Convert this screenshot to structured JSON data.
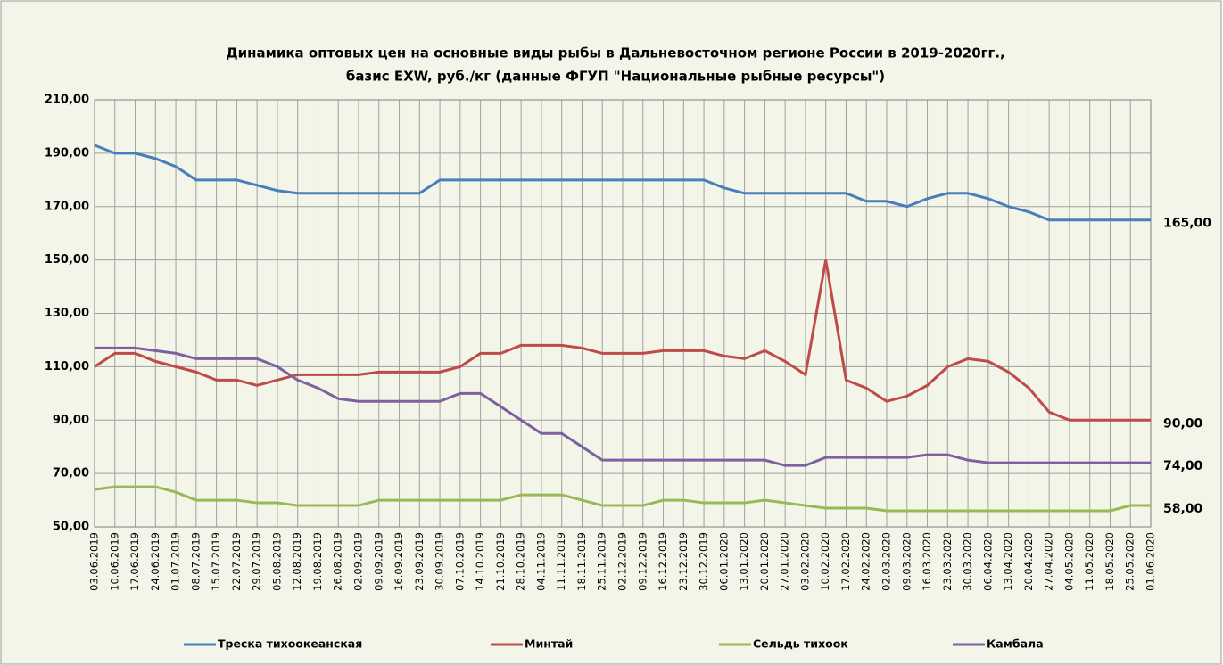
{
  "chart_data": {
    "type": "line",
    "title": [
      "Динамика оптовых цен на основные виды рыбы в Дальневосточном регионе России в 2019-2020гг.,",
      "базис EXW, руб./кг (данные ФГУП \"Национальные рыбные ресурсы\")"
    ],
    "categories": [
      "03.06.2019",
      "10.06.2019",
      "17.06.2019",
      "24.06.2019",
      "01.07.2019",
      "08.07.2019",
      "15.07.2019",
      "22.07.2019",
      "29.07.2019",
      "05.08.2019",
      "12.08.2019",
      "19.08.2019",
      "26.08.2019",
      "02.09.2019",
      "09.09.2019",
      "16.09.2019",
      "23.09.2019",
      "30.09.2019",
      "07.10.2019",
      "14.10.2019",
      "21.10.2019",
      "28.10.2019",
      "04.11.2019",
      "11.11.2019",
      "18.11.2019",
      "25.11.2019",
      "02.12.2019",
      "09.12.2019",
      "16.12.2019",
      "23.12.2019",
      "30.12.2019",
      "06.01.2020",
      "13.01.2020",
      "20.01.2020",
      "27.01.2020",
      "03.02.2020",
      "10.02.2020",
      "17.02.2020",
      "24.02.2020",
      "02.03.2020",
      "09.03.2020",
      "16.03.2020",
      "23.03.2020",
      "30.03.2020",
      "06.04.2020",
      "13.04.2020",
      "20.04.2020",
      "27.04.2020",
      "04.05.2020",
      "11.05.2020",
      "18.05.2020",
      "25.05.2020",
      "01.06.2020"
    ],
    "series": [
      {
        "name": "Треска тихоокеанская",
        "color": "#4a7ebb",
        "values": [
          193,
          190,
          190,
          188,
          185,
          180,
          180,
          180,
          178,
          176,
          175,
          175,
          175,
          175,
          175,
          175,
          175,
          180,
          180,
          180,
          180,
          180,
          180,
          180,
          180,
          180,
          180,
          180,
          180,
          180,
          180,
          177,
          175,
          175,
          175,
          175,
          175,
          175,
          172,
          172,
          170,
          173,
          175,
          175,
          173,
          170,
          168,
          165,
          165,
          165,
          165,
          165,
          165
        ],
        "value_labels": [
          null,
          null,
          null,
          null,
          null,
          null,
          null,
          null,
          null,
          null,
          null,
          null,
          null,
          null,
          null,
          null,
          null,
          null,
          null,
          null,
          null,
          null,
          null,
          null,
          null,
          null,
          null,
          null,
          null,
          null,
          null,
          null,
          null,
          null,
          null,
          null,
          null,
          null,
          null,
          null,
          null,
          null,
          null,
          null,
          null,
          null,
          null,
          null,
          null,
          null,
          null,
          null,
          "165,00"
        ]
      },
      {
        "name": "Минтай",
        "color": "#be4b48",
        "values": [
          110,
          115,
          115,
          112,
          110,
          108,
          105,
          105,
          103,
          105,
          107,
          107,
          107,
          107,
          108,
          108,
          108,
          108,
          110,
          115,
          115,
          118,
          118,
          118,
          117,
          115,
          115,
          115,
          116,
          116,
          116,
          114,
          113,
          116,
          112,
          107,
          150,
          105,
          102,
          97,
          99,
          103,
          110,
          113,
          112,
          108,
          102,
          93,
          90,
          90,
          90,
          90,
          90
        ],
        "value_labels": [
          null,
          null,
          null,
          null,
          null,
          null,
          null,
          null,
          null,
          null,
          null,
          null,
          null,
          null,
          null,
          null,
          null,
          null,
          null,
          null,
          null,
          null,
          null,
          null,
          null,
          null,
          null,
          null,
          null,
          null,
          null,
          null,
          null,
          null,
          null,
          null,
          null,
          null,
          null,
          null,
          null,
          null,
          null,
          null,
          null,
          null,
          null,
          null,
          null,
          null,
          null,
          null,
          "90,00"
        ]
      },
      {
        "name": "Сельдь тихоок",
        "color": "#98b954",
        "values": [
          64,
          65,
          65,
          65,
          63,
          60,
          60,
          60,
          59,
          59,
          58,
          58,
          58,
          58,
          60,
          60,
          60,
          60,
          60,
          60,
          60,
          62,
          62,
          62,
          60,
          58,
          58,
          58,
          60,
          60,
          59,
          59,
          59,
          60,
          59,
          58,
          57,
          57,
          57,
          56,
          56,
          56,
          56,
          56,
          56,
          56,
          56,
          56,
          56,
          56,
          56,
          58,
          58
        ],
        "value_labels": [
          null,
          null,
          null,
          null,
          null,
          null,
          null,
          null,
          null,
          null,
          null,
          null,
          null,
          null,
          null,
          null,
          null,
          null,
          null,
          null,
          null,
          null,
          null,
          null,
          null,
          null,
          null,
          null,
          null,
          null,
          null,
          null,
          null,
          null,
          null,
          null,
          null,
          null,
          null,
          null,
          null,
          null,
          null,
          null,
          null,
          null,
          null,
          null,
          null,
          null,
          null,
          null,
          "58,00"
        ]
      },
      {
        "name": "Камбала",
        "color": "#7d60a0",
        "values": [
          117,
          117,
          117,
          116,
          115,
          113,
          113,
          113,
          113,
          110,
          105,
          102,
          98,
          97,
          97,
          97,
          97,
          97,
          100,
          100,
          95,
          90,
          85,
          85,
          80,
          75,
          75,
          75,
          75,
          75,
          75,
          75,
          75,
          75,
          73,
          73,
          76,
          76,
          76,
          76,
          76,
          77,
          77,
          75,
          74,
          74,
          74,
          74,
          74,
          74,
          74,
          74,
          74
        ],
        "value_labels": [
          null,
          null,
          null,
          null,
          null,
          null,
          null,
          null,
          null,
          null,
          null,
          null,
          null,
          null,
          null,
          null,
          null,
          null,
          null,
          null,
          null,
          null,
          null,
          null,
          null,
          null,
          null,
          null,
          null,
          null,
          null,
          null,
          null,
          null,
          null,
          null,
          null,
          null,
          null,
          null,
          null,
          null,
          null,
          null,
          null,
          null,
          null,
          null,
          null,
          null,
          null,
          null,
          "74,00"
        ]
      }
    ],
    "ylim": [
      50,
      210
    ],
    "yticks": [
      {
        "value": 50,
        "label": "50,00"
      },
      {
        "value": 70,
        "label": "70,00"
      },
      {
        "value": 90,
        "label": "90,00"
      },
      {
        "value": 110,
        "label": "110,00"
      },
      {
        "value": 130,
        "label": "130,00"
      },
      {
        "value": 150,
        "label": "150,00"
      },
      {
        "value": 170,
        "label": "170,00"
      },
      {
        "value": 190,
        "label": "190,00"
      },
      {
        "value": 210,
        "label": "210,00"
      }
    ],
    "grid": true,
    "legend": "bottom"
  }
}
